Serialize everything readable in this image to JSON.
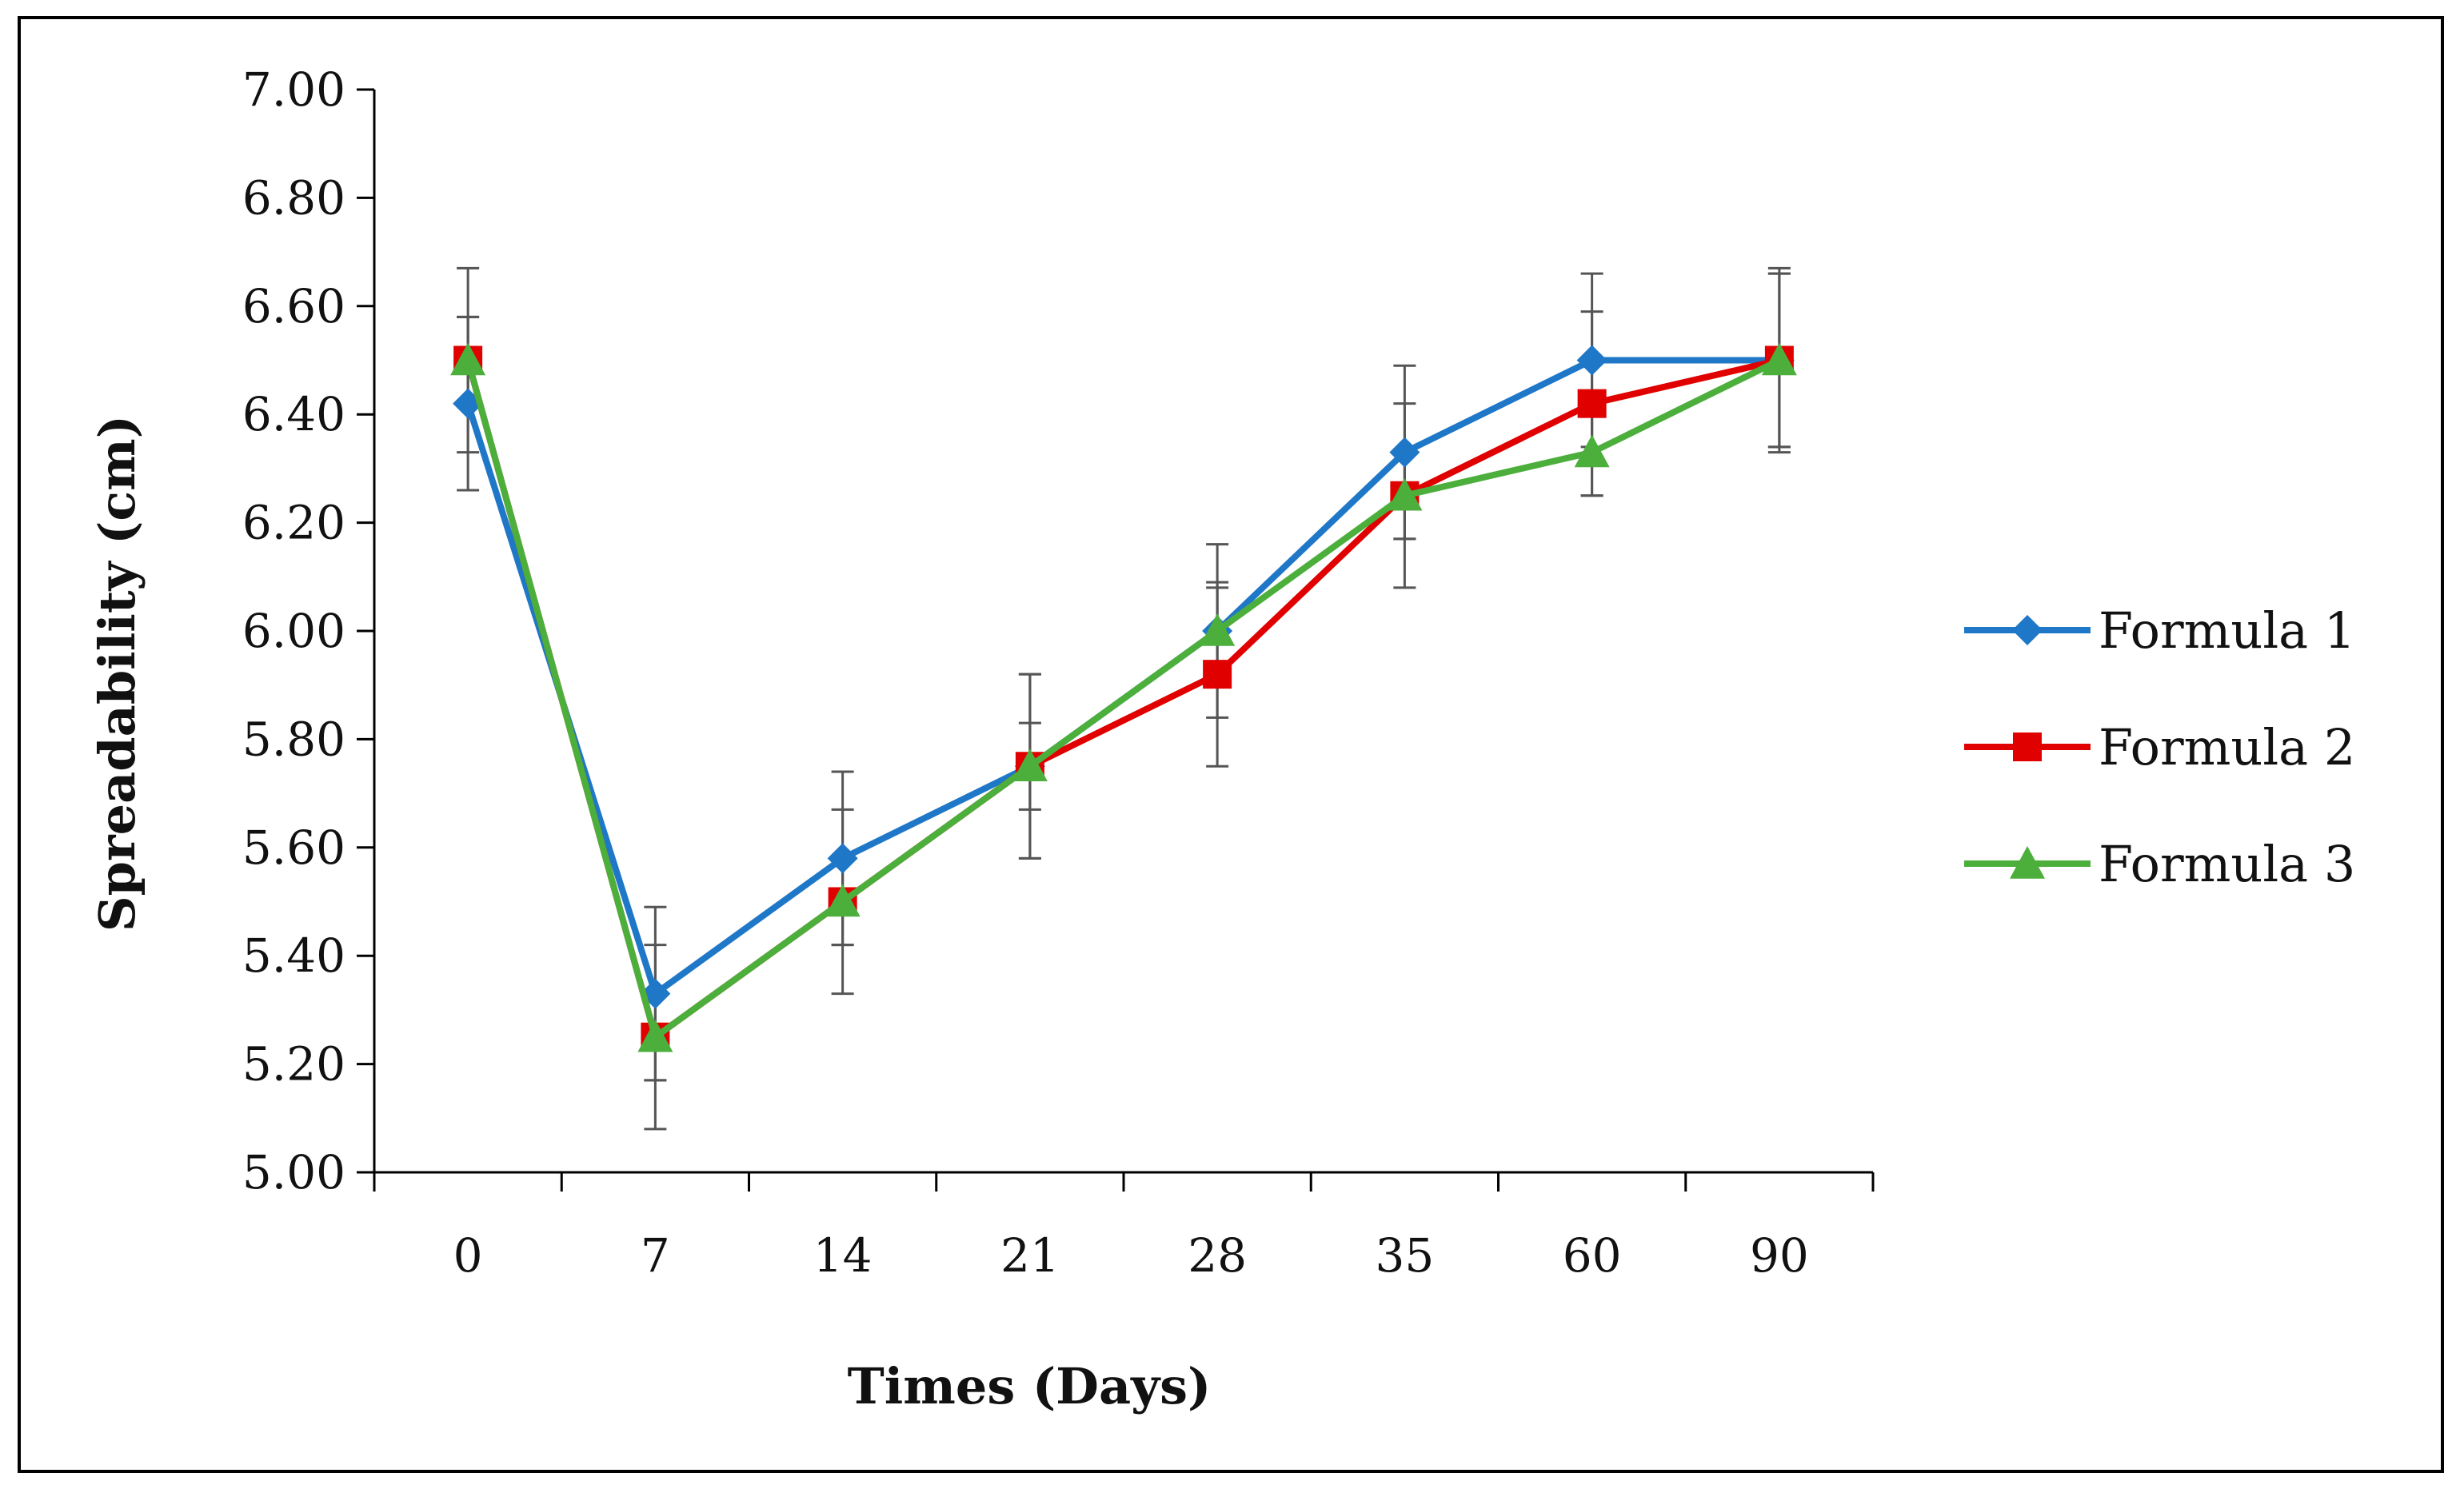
{
  "chart_data": {
    "type": "line",
    "title": "",
    "xlabel": "Times (Days)",
    "ylabel": "Spreadability (cm)",
    "categories": [
      "0",
      "7",
      "14",
      "21",
      "28",
      "35",
      "60",
      "90"
    ],
    "ylim": [
      5.0,
      7.0
    ],
    "yticks": [
      "5.00",
      "5.20",
      "5.40",
      "5.60",
      "5.80",
      "6.00",
      "6.20",
      "6.40",
      "6.60",
      "6.80",
      "7.00"
    ],
    "grid": false,
    "legend_position": "right",
    "series": [
      {
        "name": "Formula 1",
        "color": "#1f77c8",
        "marker": "diamond",
        "values": [
          6.42,
          5.33,
          5.58,
          5.75,
          6.0,
          6.33,
          6.5,
          6.5
        ],
        "errors": [
          0.16,
          0.16,
          0.16,
          0.17,
          0.16,
          0.16,
          0.16,
          0.16
        ]
      },
      {
        "name": "Formula 2",
        "color": "#e00000",
        "marker": "square",
        "values": [
          6.5,
          5.25,
          5.5,
          5.75,
          5.92,
          6.25,
          6.42,
          6.5
        ],
        "errors": [
          0.17,
          0.17,
          0.17,
          0.17,
          0.17,
          0.17,
          0.17,
          0.17
        ]
      },
      {
        "name": "Formula 3",
        "color": "#4caf3c",
        "marker": "triangle",
        "values": [
          6.5,
          5.25,
          5.5,
          5.75,
          6.0,
          6.25,
          6.33,
          6.5
        ],
        "errors": [
          0.08,
          0.08,
          0.08,
          0.08,
          0.08,
          0.08,
          0.08,
          0.16
        ]
      }
    ]
  }
}
